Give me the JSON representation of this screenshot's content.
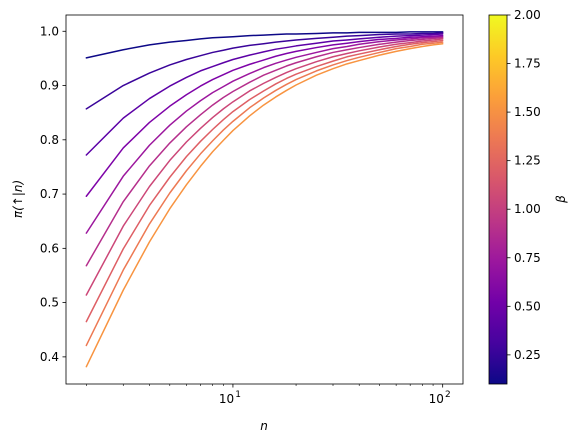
{
  "chart_data": {
    "type": "line",
    "xlabel": "n",
    "ylabel": "π(↑|n)",
    "xscale": "log",
    "xlim": [
      1.6,
      125
    ],
    "ylim": [
      0.35,
      1.03
    ],
    "x": [
      2,
      3,
      4,
      5,
      6,
      7,
      8,
      9,
      10,
      12,
      14,
      16,
      18,
      20,
      25,
      30,
      35,
      40,
      50,
      60,
      70,
      80,
      90,
      100
    ],
    "yticks": [
      {
        "value": 0.4,
        "label": "0.4"
      },
      {
        "value": 0.5,
        "label": "0.5"
      },
      {
        "value": 0.6,
        "label": "0.6"
      },
      {
        "value": 0.7,
        "label": "0.7"
      },
      {
        "value": 0.8,
        "label": "0.8"
      },
      {
        "value": 0.9,
        "label": "0.9"
      },
      {
        "value": 1.0,
        "label": "1.0"
      }
    ],
    "xticks": [
      {
        "value": 10,
        "base": "10",
        "exp": "1"
      },
      {
        "value": 100,
        "base": "10",
        "exp": "2"
      }
    ],
    "series": [
      {
        "beta": 0.1,
        "color": "#0d0887",
        "values": [
          0.951,
          0.966,
          0.975,
          0.98,
          0.983,
          0.986,
          0.988,
          0.989,
          0.99,
          0.992,
          0.993,
          0.994,
          0.995,
          0.995,
          0.996,
          0.997,
          0.997,
          0.998,
          0.998,
          0.998,
          0.999,
          0.999,
          0.999,
          0.999
        ]
      },
      {
        "beta": 0.3,
        "color": "#3a049a",
        "values": [
          0.857,
          0.9,
          0.923,
          0.938,
          0.948,
          0.955,
          0.961,
          0.965,
          0.969,
          0.974,
          0.977,
          0.98,
          0.982,
          0.984,
          0.987,
          0.989,
          0.991,
          0.992,
          0.994,
          0.995,
          0.995,
          0.996,
          0.996,
          0.997
        ]
      },
      {
        "beta": 0.5,
        "color": "#5c01a6",
        "values": [
          0.772,
          0.84,
          0.876,
          0.899,
          0.915,
          0.927,
          0.935,
          0.942,
          0.948,
          0.956,
          0.962,
          0.967,
          0.97,
          0.973,
          0.978,
          0.982,
          0.984,
          0.986,
          0.989,
          0.991,
          0.992,
          0.993,
          0.994,
          0.995
        ]
      },
      {
        "beta": 0.7,
        "color": "#7e03a8",
        "values": [
          0.696,
          0.785,
          0.832,
          0.862,
          0.883,
          0.899,
          0.911,
          0.92,
          0.928,
          0.939,
          0.947,
          0.954,
          0.959,
          0.963,
          0.97,
          0.975,
          0.978,
          0.981,
          0.985,
          0.987,
          0.989,
          0.99,
          0.991,
          0.992
        ]
      },
      {
        "beta": 0.9,
        "color": "#9c179e",
        "values": [
          0.628,
          0.733,
          0.79,
          0.827,
          0.853,
          0.872,
          0.887,
          0.898,
          0.908,
          0.922,
          0.933,
          0.941,
          0.947,
          0.952,
          0.961,
          0.968,
          0.972,
          0.976,
          0.981,
          0.984,
          0.986,
          0.988,
          0.989,
          0.99
        ]
      },
      {
        "beta": 1.1,
        "color": "#b52f8c",
        "values": [
          0.568,
          0.686,
          0.752,
          0.794,
          0.824,
          0.846,
          0.864,
          0.878,
          0.889,
          0.906,
          0.919,
          0.928,
          0.936,
          0.942,
          0.953,
          0.961,
          0.966,
          0.97,
          0.976,
          0.98,
          0.983,
          0.985,
          0.987,
          0.988
        ]
      },
      {
        "beta": 1.3,
        "color": "#cc4778",
        "values": [
          0.514,
          0.641,
          0.714,
          0.762,
          0.796,
          0.821,
          0.841,
          0.857,
          0.87,
          0.89,
          0.904,
          0.915,
          0.924,
          0.931,
          0.944,
          0.953,
          0.959,
          0.964,
          0.971,
          0.976,
          0.979,
          0.982,
          0.984,
          0.986
        ]
      },
      {
        "beta": 1.5,
        "color": "#de5f65",
        "values": [
          0.465,
          0.599,
          0.679,
          0.731,
          0.769,
          0.797,
          0.819,
          0.837,
          0.852,
          0.874,
          0.89,
          0.903,
          0.913,
          0.921,
          0.935,
          0.945,
          0.953,
          0.958,
          0.966,
          0.972,
          0.976,
          0.979,
          0.981,
          0.983
        ]
      },
      {
        "beta": 1.7,
        "color": "#ed7953",
        "values": [
          0.421,
          0.56,
          0.645,
          0.702,
          0.743,
          0.774,
          0.798,
          0.818,
          0.834,
          0.859,
          0.877,
          0.891,
          0.902,
          0.911,
          0.927,
          0.938,
          0.946,
          0.952,
          0.961,
          0.968,
          0.972,
          0.976,
          0.978,
          0.98
        ]
      },
      {
        "beta": 1.9,
        "color": "#f89441",
        "values": [
          0.382,
          0.523,
          0.612,
          0.673,
          0.717,
          0.751,
          0.778,
          0.799,
          0.817,
          0.844,
          0.864,
          0.879,
          0.891,
          0.901,
          0.919,
          0.931,
          0.94,
          0.946,
          0.956,
          0.963,
          0.968,
          0.972,
          0.975,
          0.977
        ]
      }
    ],
    "colorbar": {
      "label": "β",
      "range": [
        0.1,
        2.0
      ],
      "colormap": [
        "#0d0887",
        "#46039f",
        "#7201a8",
        "#9c179e",
        "#bd3786",
        "#d8576b",
        "#ed7953",
        "#fb9f3a",
        "#fdca26",
        "#f0f921"
      ],
      "ticks": [
        {
          "value": 0.25,
          "label": "0.25"
        },
        {
          "value": 0.5,
          "label": "0.50"
        },
        {
          "value": 0.75,
          "label": "0.75"
        },
        {
          "value": 1.0,
          "label": "1.00"
        },
        {
          "value": 1.25,
          "label": "1.25"
        },
        {
          "value": 1.5,
          "label": "1.50"
        },
        {
          "value": 1.75,
          "label": "1.75"
        },
        {
          "value": 2.0,
          "label": "2.00"
        }
      ]
    }
  }
}
